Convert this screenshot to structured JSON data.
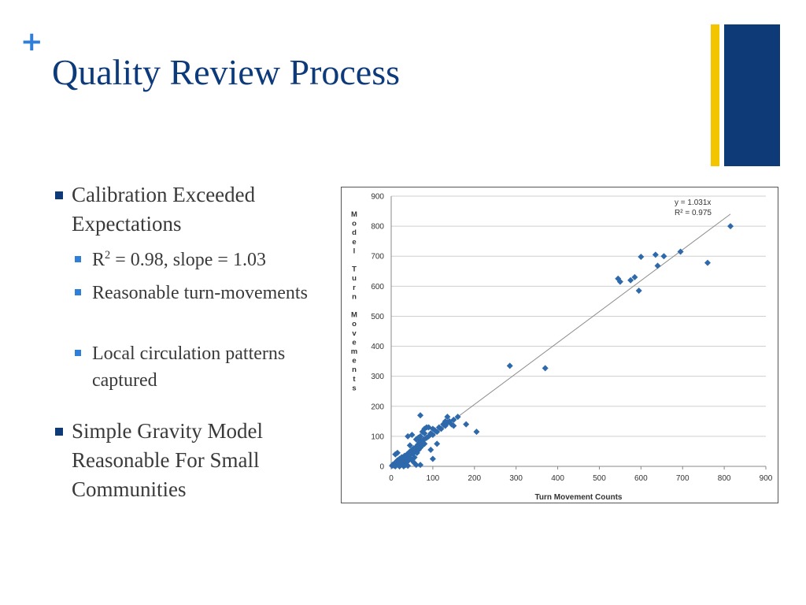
{
  "slide": {
    "plus_glyph": "+",
    "title": "Quality Review Process"
  },
  "bullets": [
    {
      "text": "Calibration Exceeded Expectations"
    },
    {
      "text": "Simple Gravity Model Reasonable For Small Communities"
    }
  ],
  "sub_bullets": [
    {
      "pre": "R",
      "sup": "2",
      "post": " = 0.98, slope = 1.03"
    },
    {
      "text": "Reasonable turn-movements"
    },
    {
      "text": "Local circulation patterns captured"
    }
  ],
  "colors": {
    "title": "#0d3a7a",
    "accent_blue": "#0e3a78",
    "accent_yellow": "#f3c400",
    "plus": "#2f7fd8",
    "bullet_square": "#0e3a78",
    "sub_bullet_square": "#2f7fd8",
    "body_text": "#3a3a3a",
    "marker": "#2e69ab",
    "trendline": "#8c8c8c",
    "gridline": "#cfcfcf"
  },
  "chart_data": {
    "type": "scatter",
    "xlabel": "Turn Movement Counts",
    "ylabel": "Model Turn Movements",
    "xlim": [
      0,
      900
    ],
    "ylim": [
      0,
      900
    ],
    "xticks": [
      0,
      100,
      200,
      300,
      400,
      500,
      600,
      700,
      800,
      900
    ],
    "yticks": [
      0,
      100,
      200,
      300,
      400,
      500,
      600,
      700,
      800,
      900
    ],
    "grid": "horizontal",
    "annotation": [
      "y = 1.031x",
      "R² = 0.975"
    ],
    "trendline": {
      "slope": 1.031,
      "x_range": [
        0,
        815
      ]
    },
    "points": [
      [
        2,
        2
      ],
      [
        4,
        6
      ],
      [
        6,
        3
      ],
      [
        8,
        10
      ],
      [
        10,
        4
      ],
      [
        12,
        14
      ],
      [
        14,
        8
      ],
      [
        15,
        20
      ],
      [
        18,
        12
      ],
      [
        20,
        25
      ],
      [
        22,
        18
      ],
      [
        24,
        6
      ],
      [
        26,
        30
      ],
      [
        28,
        22
      ],
      [
        30,
        15
      ],
      [
        32,
        35
      ],
      [
        34,
        28
      ],
      [
        35,
        10
      ],
      [
        38,
        40
      ],
      [
        40,
        32
      ],
      [
        42,
        20
      ],
      [
        44,
        48
      ],
      [
        45,
        38
      ],
      [
        48,
        25
      ],
      [
        50,
        55
      ],
      [
        52,
        42
      ],
      [
        54,
        60
      ],
      [
        56,
        30
      ],
      [
        58,
        50
      ],
      [
        60,
        65
      ],
      [
        62,
        45
      ],
      [
        64,
        72
      ],
      [
        66,
        55
      ],
      [
        68,
        80
      ],
      [
        70,
        62
      ],
      [
        72,
        85
      ],
      [
        75,
        70
      ],
      [
        78,
        90
      ],
      [
        80,
        75
      ],
      [
        85,
        95
      ],
      [
        90,
        100
      ],
      [
        95,
        110
      ],
      [
        100,
        105
      ],
      [
        105,
        120
      ],
      [
        110,
        115
      ],
      [
        115,
        130
      ],
      [
        120,
        125
      ],
      [
        125,
        140
      ],
      [
        130,
        135
      ],
      [
        135,
        145
      ],
      [
        140,
        150
      ],
      [
        145,
        140
      ],
      [
        150,
        155
      ],
      [
        40,
        100
      ],
      [
        50,
        105
      ],
      [
        60,
        90
      ],
      [
        70,
        100
      ],
      [
        75,
        115
      ],
      [
        80,
        125
      ],
      [
        85,
        130
      ],
      [
        130,
        150
      ],
      [
        135,
        165
      ],
      [
        160,
        165
      ],
      [
        150,
        135
      ],
      [
        70,
        170
      ],
      [
        100,
        125
      ],
      [
        110,
        75
      ],
      [
        95,
        55
      ],
      [
        100,
        25
      ],
      [
        60,
        5
      ],
      [
        70,
        5
      ],
      [
        40,
        2
      ],
      [
        30,
        0
      ],
      [
        20,
        0
      ],
      [
        10,
        0
      ],
      [
        50,
        20
      ],
      [
        55,
        12
      ],
      [
        35,
        5
      ],
      [
        25,
        30
      ],
      [
        15,
        45
      ],
      [
        10,
        40
      ],
      [
        45,
        70
      ],
      [
        65,
        95
      ],
      [
        80,
        110
      ],
      [
        90,
        130
      ],
      [
        180,
        140
      ],
      [
        205,
        115
      ],
      [
        285,
        335
      ],
      [
        370,
        327
      ],
      [
        545,
        625
      ],
      [
        550,
        615
      ],
      [
        575,
        620
      ],
      [
        585,
        630
      ],
      [
        595,
        585
      ],
      [
        600,
        698
      ],
      [
        635,
        705
      ],
      [
        640,
        668
      ],
      [
        655,
        700
      ],
      [
        695,
        715
      ],
      [
        760,
        678
      ],
      [
        815,
        800
      ]
    ]
  }
}
